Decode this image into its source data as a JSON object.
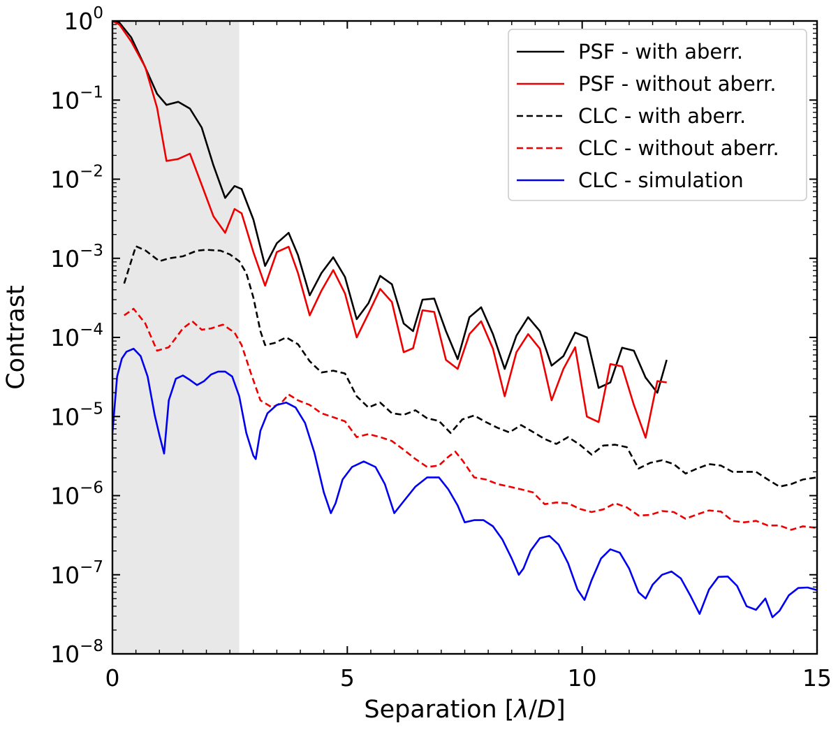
{
  "chart_data": {
    "type": "line",
    "title": "",
    "xlabel_parts": [
      "Separation [",
      "λ",
      "/",
      "D",
      "]"
    ],
    "ylabel": "Contrast",
    "xlim": [
      0,
      15
    ],
    "ylim": [
      1e-08,
      1
    ],
    "yscale": "log",
    "grid": false,
    "legend_position": "top-right",
    "x_ticks": [
      0,
      5,
      10,
      15
    ],
    "x_tick_labels": [
      "0",
      "5",
      "10",
      "15"
    ],
    "y_ticks": [
      {
        "value": 1,
        "base": "10",
        "exp": "0"
      },
      {
        "value": 0.1,
        "base": "10",
        "exp": "−1"
      },
      {
        "value": 0.01,
        "base": "10",
        "exp": "−2"
      },
      {
        "value": 0.001,
        "base": "10",
        "exp": "−3"
      },
      {
        "value": 0.0001,
        "base": "10",
        "exp": "−4"
      },
      {
        "value": 1e-05,
        "base": "10",
        "exp": "−5"
      },
      {
        "value": 1e-06,
        "base": "10",
        "exp": "−6"
      },
      {
        "value": 1e-07,
        "base": "10",
        "exp": "−7"
      },
      {
        "value": 1e-08,
        "base": "10",
        "exp": "−8"
      }
    ],
    "shaded_region": {
      "x0": 0,
      "x1": 2.7,
      "color": "#e8e8e8"
    },
    "series": [
      {
        "name": "PSF - with aberr.",
        "color": "#000000",
        "dash": "solid",
        "x": [
          0,
          0.15,
          0.4,
          0.65,
          0.95,
          1.15,
          1.4,
          1.65,
          1.9,
          2.15,
          2.4,
          2.6,
          2.75,
          3.0,
          3.25,
          3.5,
          3.75,
          3.95,
          4.2,
          4.45,
          4.7,
          4.95,
          5.2,
          5.45,
          5.7,
          5.95,
          6.2,
          6.4,
          6.6,
          6.85,
          7.1,
          7.35,
          7.6,
          7.85,
          8.1,
          8.35,
          8.6,
          8.85,
          9.1,
          9.35,
          9.6,
          9.85,
          10.1,
          10.35,
          10.6,
          10.85,
          11.1,
          11.35,
          11.6,
          11.8
        ],
        "values": [
          1.0,
          0.95,
          0.62,
          0.3,
          0.12,
          0.087,
          0.095,
          0.078,
          0.045,
          0.015,
          0.0058,
          0.0082,
          0.0075,
          0.0031,
          0.0008,
          0.00155,
          0.0021,
          0.0011,
          0.00034,
          0.00065,
          0.00103,
          0.00058,
          0.00017,
          0.00027,
          0.0006,
          0.00047,
          0.00015,
          0.00012,
          0.0003,
          0.00031,
          0.00012,
          5.3e-05,
          0.00018,
          0.00024,
          0.00011,
          4e-05,
          0.000105,
          0.00018,
          0.00012,
          4.4e-05,
          5.8e-05,
          0.000115,
          0.0001,
          2.3e-05,
          2.7e-05,
          7.4e-05,
          6.8e-05,
          3.1e-05,
          2e-05,
          5.2e-05
        ]
      },
      {
        "name": "PSF - without aberr.",
        "color": "#ee0000",
        "dash": "solid",
        "x": [
          0,
          0.15,
          0.4,
          0.7,
          0.95,
          1.15,
          1.4,
          1.65,
          1.9,
          2.15,
          2.4,
          2.6,
          2.75,
          3.0,
          3.25,
          3.5,
          3.75,
          3.95,
          4.2,
          4.45,
          4.7,
          4.95,
          5.2,
          5.45,
          5.7,
          5.95,
          6.2,
          6.4,
          6.6,
          6.85,
          7.1,
          7.35,
          7.6,
          7.85,
          8.1,
          8.35,
          8.6,
          8.85,
          9.1,
          9.35,
          9.6,
          9.85,
          10.1,
          10.35,
          10.6,
          10.85,
          11.1,
          11.35,
          11.6,
          11.8
        ],
        "values": [
          1.0,
          0.9,
          0.55,
          0.26,
          0.08,
          0.017,
          0.018,
          0.021,
          0.0085,
          0.0034,
          0.0021,
          0.0042,
          0.0037,
          0.0012,
          0.00045,
          0.0012,
          0.0014,
          0.00065,
          0.00019,
          0.00039,
          0.00071,
          0.00036,
          0.0001,
          0.0002,
          0.00041,
          0.00028,
          6.5e-05,
          7.3e-05,
          0.00022,
          0.00021,
          5.2e-05,
          4e-05,
          0.00011,
          0.00016,
          7.2e-05,
          1.8e-05,
          6.5e-05,
          0.00011,
          7.2e-05,
          1.6e-05,
          4e-05,
          7.5e-05,
          1e-05,
          8.5e-06,
          4.6e-05,
          4.3e-05,
          1.4e-05,
          5.4e-06,
          2.8e-05,
          2.7e-05
        ]
      },
      {
        "name": "CLC - with aberr.",
        "color": "#000000",
        "dash": "dashed",
        "x": [
          0.25,
          0.5,
          0.7,
          1.0,
          1.2,
          1.5,
          1.8,
          2.0,
          2.3,
          2.5,
          2.7,
          2.85,
          3.0,
          3.15,
          3.25,
          3.45,
          3.7,
          3.95,
          4.2,
          4.45,
          4.7,
          4.95,
          5.2,
          5.45,
          5.7,
          5.95,
          6.2,
          6.45,
          6.7,
          6.95,
          7.2,
          7.45,
          7.7,
          7.95,
          8.2,
          8.45,
          8.7,
          8.95,
          9.2,
          9.45,
          9.7,
          9.95,
          10.2,
          10.45,
          10.7,
          10.95,
          11.2,
          11.45,
          11.7,
          11.95,
          12.2,
          12.45,
          12.7,
          12.95,
          13.2,
          13.45,
          13.7,
          13.95,
          14.2,
          14.45,
          14.7,
          15.0
        ],
        "values": [
          0.00048,
          0.00142,
          0.00126,
          0.00092,
          0.001,
          0.00106,
          0.00125,
          0.00128,
          0.00125,
          0.00112,
          0.00092,
          0.00065,
          0.00032,
          0.00012,
          8e-05,
          8.5e-05,
          0.0001,
          8.2e-05,
          5e-05,
          3.6e-05,
          3.8e-05,
          3.5e-05,
          1.8e-05,
          1.3e-05,
          1.5e-05,
          1.1e-05,
          1.05e-05,
          1.2e-05,
          9.5e-06,
          8.8e-06,
          6.2e-06,
          9.2e-06,
          1.03e-05,
          8.5e-06,
          7.2e-06,
          6.3e-06,
          7.8e-06,
          6.4e-06,
          5.2e-06,
          4.5e-06,
          5.5e-06,
          4.4e-06,
          3.3e-06,
          4.3e-06,
          4.4e-06,
          4.1e-06,
          2.2e-06,
          2.6e-06,
          2.8e-06,
          2.5e-06,
          1.9e-06,
          2.2e-06,
          2.5e-06,
          2.4e-06,
          2e-06,
          2e-06,
          2e-06,
          1.6e-06,
          1.3e-06,
          1.4e-06,
          1.6e-06,
          1.7e-06
        ]
      },
      {
        "name": "CLC - without aberr.",
        "color": "#ee0000",
        "dash": "dashed",
        "x": [
          0.25,
          0.45,
          0.7,
          0.95,
          1.2,
          1.5,
          1.7,
          1.9,
          2.1,
          2.35,
          2.6,
          2.75,
          2.95,
          3.15,
          3.4,
          3.6,
          3.75,
          3.95,
          4.2,
          4.45,
          4.7,
          4.95,
          5.2,
          5.45,
          5.7,
          5.95,
          6.2,
          6.45,
          6.7,
          6.95,
          7.15,
          7.3,
          7.45,
          7.7,
          7.95,
          8.2,
          8.45,
          8.7,
          8.95,
          9.2,
          9.45,
          9.7,
          9.95,
          10.2,
          10.45,
          10.7,
          10.95,
          11.2,
          11.45,
          11.7,
          11.95,
          12.2,
          12.45,
          12.7,
          12.95,
          13.2,
          13.45,
          13.7,
          13.95,
          14.2,
          14.45,
          14.7,
          15.0
        ],
        "values": [
          0.00019,
          0.00023,
          0.00015,
          6.8e-05,
          7.5e-05,
          0.00013,
          0.00016,
          0.000125,
          0.00013,
          0.000145,
          0.000115,
          8e-05,
          3.5e-05,
          1.6e-05,
          1.3e-05,
          1.5e-05,
          1.9e-05,
          1.6e-05,
          1.4e-05,
          1.1e-05,
          9.8e-06,
          8.7e-06,
          5.5e-06,
          6e-06,
          5.5e-06,
          4.9e-06,
          3.8e-06,
          2.9e-06,
          2.3e-06,
          2.4e-06,
          3.1e-06,
          3.6e-06,
          2.8e-06,
          1.7e-06,
          1.6e-06,
          1.4e-06,
          1.3e-06,
          1.2e-06,
          1.1e-06,
          7.8e-07,
          8.2e-07,
          8e-07,
          6.8e-07,
          6.2e-07,
          6.7e-07,
          8e-07,
          7.1e-07,
          5.6e-07,
          5.7e-07,
          6.4e-07,
          6.2e-07,
          5.1e-07,
          5.8e-07,
          6.5e-07,
          6.3e-07,
          4.8e-07,
          4.6e-07,
          4.8e-07,
          4.2e-07,
          4.2e-07,
          3.7e-07,
          4.1e-07,
          3.9e-07
        ]
      },
      {
        "name": "CLC - simulation",
        "color": "#0000ee",
        "dash": "solid",
        "x": [
          0,
          0.1,
          0.2,
          0.3,
          0.45,
          0.6,
          0.75,
          0.9,
          1.0,
          1.1,
          1.2,
          1.35,
          1.5,
          1.65,
          1.8,
          1.95,
          2.1,
          2.25,
          2.4,
          2.55,
          2.7,
          2.85,
          3.0,
          3.05,
          3.15,
          3.3,
          3.5,
          3.7,
          3.9,
          4.1,
          4.3,
          4.5,
          4.65,
          4.75,
          4.9,
          5.1,
          5.35,
          5.6,
          5.8,
          6.0,
          6.2,
          6.45,
          6.7,
          6.95,
          7.15,
          7.35,
          7.5,
          7.7,
          7.9,
          8.1,
          8.3,
          8.5,
          8.65,
          8.75,
          8.9,
          9.1,
          9.3,
          9.5,
          9.7,
          9.9,
          10.05,
          10.2,
          10.4,
          10.6,
          10.8,
          11.0,
          11.2,
          11.35,
          11.5,
          11.7,
          11.9,
          12.1,
          12.3,
          12.5,
          12.7,
          12.9,
          13.1,
          13.3,
          13.5,
          13.7,
          13.9,
          14.05,
          14.2,
          14.4,
          14.6,
          14.8,
          15.0
        ],
        "values": [
          6.2e-06,
          3.2e-05,
          5.4e-05,
          6.6e-05,
          7.2e-05,
          5.8e-05,
          3.2e-05,
          1.05e-05,
          5.8e-06,
          3.4e-06,
          1.6e-05,
          3e-05,
          3.3e-05,
          2.9e-05,
          2.5e-05,
          2.8e-05,
          3.4e-05,
          3.7e-05,
          3.7e-05,
          3.2e-05,
          1.8e-05,
          6.2e-06,
          3.2e-06,
          2.9e-06,
          6.6e-06,
          1.1e-05,
          1.4e-05,
          1.5e-05,
          1.3e-05,
          8.3e-06,
          3.5e-06,
          1.1e-06,
          6e-07,
          8e-07,
          1.6e-06,
          2.3e-06,
          2.7e-06,
          2.3e-06,
          1.4e-06,
          6e-07,
          8.5e-07,
          1.3e-06,
          1.7e-06,
          1.7e-06,
          1.2e-06,
          7.5e-07,
          4.6e-07,
          4.9e-07,
          4.9e-07,
          4.1e-07,
          2.8e-07,
          1.6e-07,
          1e-07,
          1.2e-07,
          2e-07,
          2.9e-07,
          3.1e-07,
          2.4e-07,
          1.4e-07,
          6.5e-08,
          4.8e-08,
          8.5e-08,
          1.6e-07,
          2.1e-07,
          1.9e-07,
          1.2e-07,
          6e-08,
          5e-08,
          7.5e-08,
          1e-07,
          1.1e-07,
          9e-08,
          5.5e-08,
          3.2e-08,
          6.5e-08,
          9.4e-08,
          9.5e-08,
          7.2e-08,
          4e-08,
          3.6e-08,
          5e-08,
          2.9e-08,
          3.5e-08,
          5.5e-08,
          6.8e-08,
          6.9e-08,
          6.4e-08
        ]
      }
    ]
  }
}
